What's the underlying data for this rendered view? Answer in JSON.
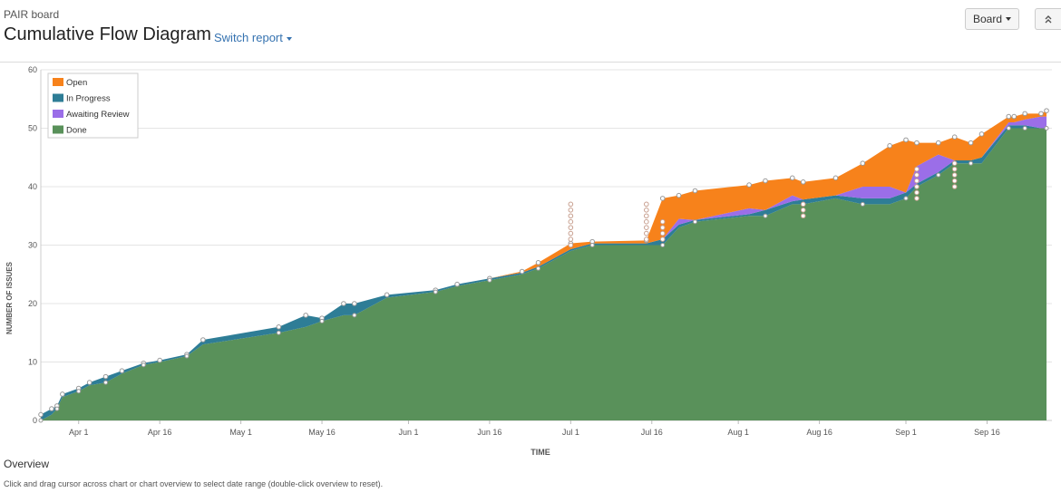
{
  "header": {
    "board_name": "PAIR board",
    "title": "Cumulative Flow Diagram",
    "switch_report": "Switch report",
    "board_button": "Board",
    "collapse_icon": "double-chevron-up-icon"
  },
  "footer": {
    "overview_title": "Overview",
    "help_text": "Click and drag cursor across chart or chart overview to select date range (double-click overview to reset)."
  },
  "chart_data": {
    "type": "area",
    "stacked": true,
    "xlabel": "TIME",
    "ylabel": "NUMBER OF ISSUES",
    "ylim": [
      0,
      60
    ],
    "yticks": [
      0,
      10,
      20,
      30,
      40,
      50,
      60
    ],
    "xlim": [
      "2015-03-25",
      "2015-09-28"
    ],
    "xticks": [
      {
        "date": "2015-04-01",
        "label": "Apr 1"
      },
      {
        "date": "2015-04-16",
        "label": "Apr 16"
      },
      {
        "date": "2015-05-01",
        "label": "May 1"
      },
      {
        "date": "2015-05-16",
        "label": "May 16"
      },
      {
        "date": "2015-06-01",
        "label": "Jun 1"
      },
      {
        "date": "2015-06-16",
        "label": "Jun 16"
      },
      {
        "date": "2015-07-01",
        "label": "Jul 1"
      },
      {
        "date": "2015-07-16",
        "label": "Jul 16"
      },
      {
        "date": "2015-08-01",
        "label": "Aug 1"
      },
      {
        "date": "2015-08-16",
        "label": "Aug 16"
      },
      {
        "date": "2015-09-01",
        "label": "Sep 1"
      },
      {
        "date": "2015-09-16",
        "label": "Sep 16"
      }
    ],
    "grid": true,
    "legend_position": "top-left",
    "x": [
      "2015-03-25",
      "2015-03-27",
      "2015-03-28",
      "2015-03-29",
      "2015-04-01",
      "2015-04-03",
      "2015-04-06",
      "2015-04-09",
      "2015-04-13",
      "2015-04-16",
      "2015-04-21",
      "2015-04-24",
      "2015-05-08",
      "2015-05-13",
      "2015-05-16",
      "2015-05-20",
      "2015-05-22",
      "2015-05-28",
      "2015-06-06",
      "2015-06-10",
      "2015-06-16",
      "2015-06-22",
      "2015-06-25",
      "2015-07-01",
      "2015-07-05",
      "2015-07-15",
      "2015-07-18",
      "2015-07-21",
      "2015-07-24",
      "2015-08-03",
      "2015-08-06",
      "2015-08-11",
      "2015-08-13",
      "2015-08-19",
      "2015-08-24",
      "2015-08-29",
      "2015-09-01",
      "2015-09-03",
      "2015-09-07",
      "2015-09-10",
      "2015-09-13",
      "2015-09-15",
      "2015-09-20",
      "2015-09-21",
      "2015-09-23",
      "2015-09-26",
      "2015-09-27"
    ],
    "series": [
      {
        "name": "Done",
        "color": "#59915a",
        "values": [
          0,
          1,
          2,
          4,
          5,
          6,
          6.5,
          8,
          9.5,
          10,
          11,
          13,
          15,
          16,
          17,
          18,
          18,
          21,
          22,
          23,
          24,
          25,
          26,
          29,
          30,
          30,
          30,
          33,
          34,
          35,
          35,
          37,
          37,
          38,
          37,
          37,
          38,
          40,
          42,
          44,
          44,
          44,
          50,
          50,
          50,
          50,
          50
        ]
      },
      {
        "name": "In Progress",
        "color": "#2e7d96",
        "values": [
          1,
          1,
          0.5,
          0.5,
          0.5,
          0.5,
          1,
          0.5,
          0.3,
          0.3,
          0.3,
          0.8,
          1,
          2,
          0.5,
          2,
          2,
          0.5,
          0.3,
          0.3,
          0.3,
          0.3,
          0.3,
          0.3,
          0.3,
          0.3,
          1,
          0.5,
          0.3,
          0.3,
          1,
          0.5,
          0.8,
          0.5,
          1,
          1,
          1,
          0.5,
          0.5,
          0.5,
          0.5,
          1,
          0.5,
          0.5,
          0.5,
          0,
          0
        ]
      },
      {
        "name": "Awaiting Review",
        "color": "#9b6ee8",
        "values": [
          0,
          0,
          0,
          0,
          0,
          0,
          0,
          0,
          0,
          0,
          0,
          0,
          0,
          0,
          0,
          0,
          0,
          0,
          0,
          0,
          0,
          0,
          0,
          0,
          0,
          0,
          0,
          1,
          0,
          1,
          0,
          1,
          0,
          0,
          2,
          2,
          0,
          3,
          3,
          0,
          0,
          0,
          0.5,
          0.5,
          1,
          2,
          2
        ]
      },
      {
        "name": "Open",
        "color": "#f7821b",
        "values": [
          0,
          0,
          0,
          0,
          0,
          0,
          0,
          0,
          0,
          0,
          0,
          0,
          0,
          0,
          0,
          0,
          0,
          0,
          0,
          0,
          0,
          0.2,
          0.7,
          1,
          0.3,
          0.5,
          7,
          4,
          5,
          4,
          5,
          3,
          3,
          3,
          4,
          7,
          9,
          4,
          2,
          4,
          3,
          4,
          1,
          1,
          1,
          0.5,
          1
        ]
      }
    ],
    "markers": [
      {
        "date": "2015-07-01",
        "values": [
          30,
          31,
          32,
          33,
          34,
          35,
          36,
          37
        ]
      },
      {
        "date": "2015-07-15",
        "values": [
          31,
          32,
          33,
          34,
          35,
          36,
          37
        ]
      },
      {
        "date": "2015-07-18",
        "values": [
          31,
          32,
          33,
          34
        ]
      },
      {
        "date": "2015-08-13",
        "values": [
          35,
          36,
          37
        ]
      },
      {
        "date": "2015-09-03",
        "values": [
          38,
          39,
          40,
          41,
          42,
          43
        ]
      },
      {
        "date": "2015-09-10",
        "values": [
          40,
          41,
          42,
          43,
          44
        ]
      }
    ]
  }
}
